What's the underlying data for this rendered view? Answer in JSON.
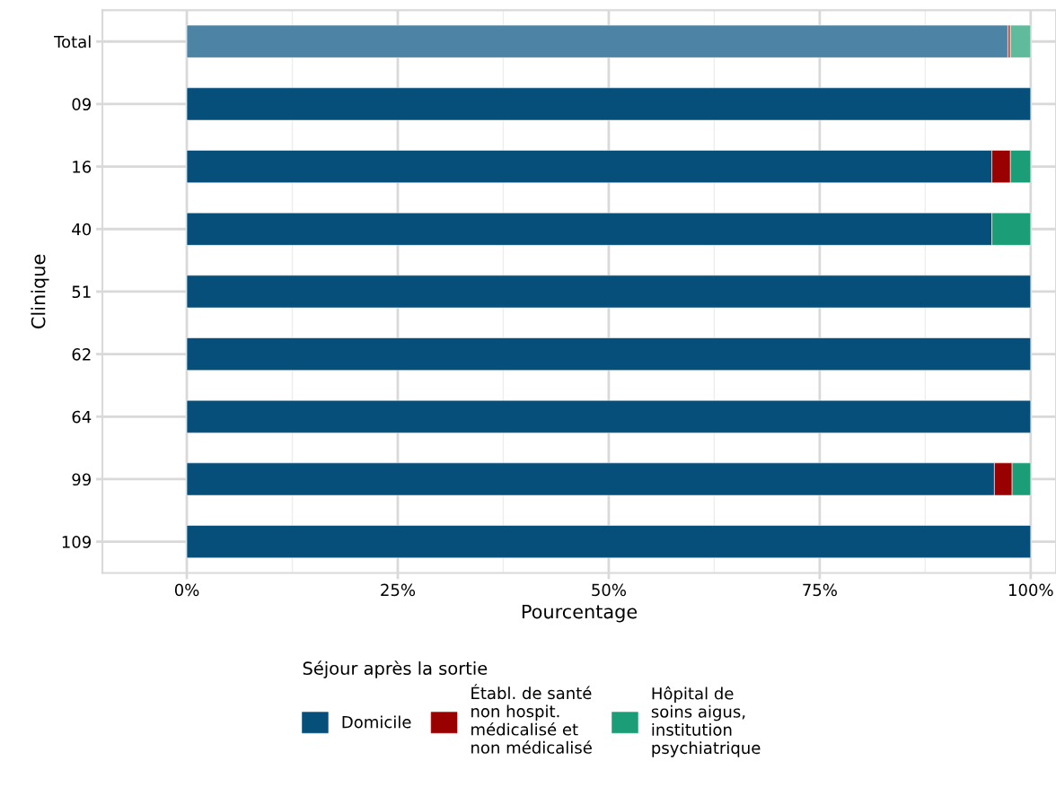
{
  "chart_data": {
    "type": "bar",
    "orientation": "horizontal",
    "stacked": true,
    "xlabel": "Pourcentage",
    "ylabel": "Clinique",
    "legend_title": "Séjour après la sortie",
    "legend": "bottom",
    "grid": true,
    "categories": [
      "Total",
      "09",
      "16",
      "40",
      "51",
      "62",
      "64",
      "99",
      "109"
    ],
    "xlim": [
      -10,
      103
    ],
    "xticks": [
      {
        "value": 0,
        "label": "0%"
      },
      {
        "value": 12.5,
        "label": null
      },
      {
        "value": 25,
        "label": "25%"
      },
      {
        "value": 37.5,
        "label": null
      },
      {
        "value": 50,
        "label": "50%"
      },
      {
        "value": 62.5,
        "label": null
      },
      {
        "value": 75,
        "label": "75%"
      },
      {
        "value": 87.5,
        "label": null
      },
      {
        "value": 100,
        "label": "100%"
      }
    ],
    "series": [
      {
        "name": "Domicile",
        "color": "#074f7b",
        "colors": [
          "#4d84a5",
          "#074f7b",
          "#074f7b",
          "#074f7b",
          "#074f7b",
          "#074f7b",
          "#074f7b",
          "#074f7b",
          "#074f7b"
        ],
        "values": [
          97.3,
          100,
          95.4,
          95.4,
          100,
          100,
          100,
          95.7,
          100
        ]
      },
      {
        "name": "Établ. de santé\nnon hospit.\nmédicalisé et\nnon médicalisé",
        "color": "#990000",
        "colors": [
          "#c04a4a",
          "#990000",
          "#990000",
          "#990000",
          "#990000",
          "#990000",
          "#990000",
          "#990000",
          "#990000"
        ],
        "values": [
          0.3,
          null,
          2.2,
          null,
          null,
          null,
          null,
          2.1,
          null
        ]
      },
      {
        "name": "Hôpital de\nsoins aigus,\ninstitution\npsychiatrique",
        "color": "#1b9e77",
        "colors": [
          "#5fbb9b",
          "#1b9e77",
          "#1b9e77",
          "#1b9e77",
          "#1b9e77",
          "#1b9e77",
          "#1b9e77",
          "#1b9e77",
          "#1b9e77"
        ],
        "values": [
          2.4,
          null,
          2.4,
          4.6,
          null,
          null,
          null,
          2.2,
          null
        ]
      }
    ]
  }
}
